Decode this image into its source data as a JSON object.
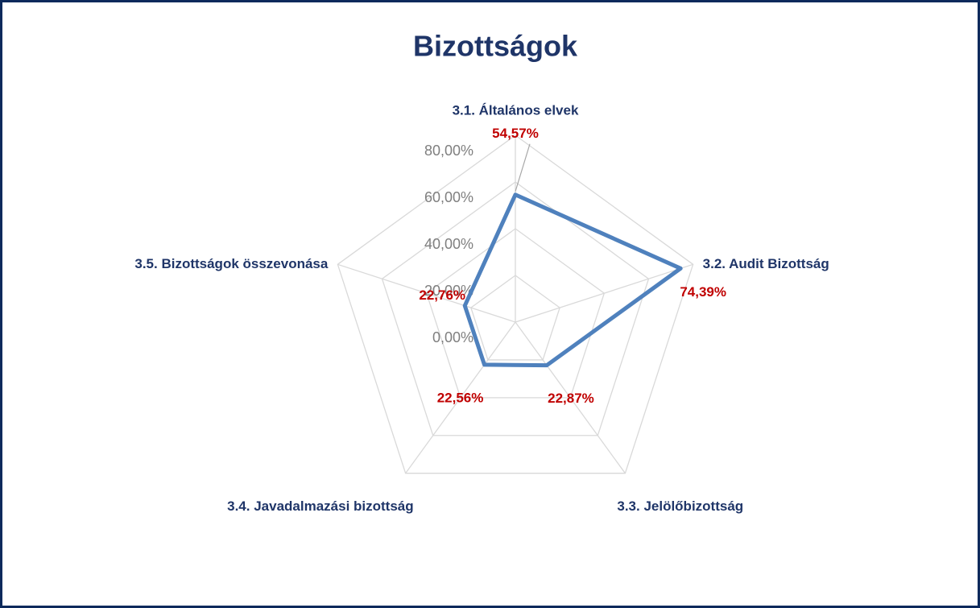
{
  "chart_data": {
    "type": "radar",
    "title": "Bizottságok",
    "categories": [
      "3.1. Általános elvek",
      "3.2. Audit Bizottság",
      "3.3. Jelölőbizottság",
      "3.4. Javadalmazási bizottság",
      "3.5. Bizottságok összevonása"
    ],
    "series": [
      {
        "color": "#4f81bd",
        "values": [
          54.57,
          74.39,
          22.87,
          22.56,
          22.76
        ],
        "value_labels": [
          "54,57%",
          "74,39%",
          "22,87%",
          "22,56%",
          "22,76%"
        ]
      }
    ],
    "ylim": [
      0,
      80
    ],
    "yticks": [
      {
        "value": 0,
        "label": "0,00%"
      },
      {
        "value": 20,
        "label": "20,00%"
      },
      {
        "value": 40,
        "label": "40,00%"
      },
      {
        "value": 60,
        "label": "60,00%"
      },
      {
        "value": 80,
        "label": "80,00%"
      }
    ],
    "grid": true
  }
}
